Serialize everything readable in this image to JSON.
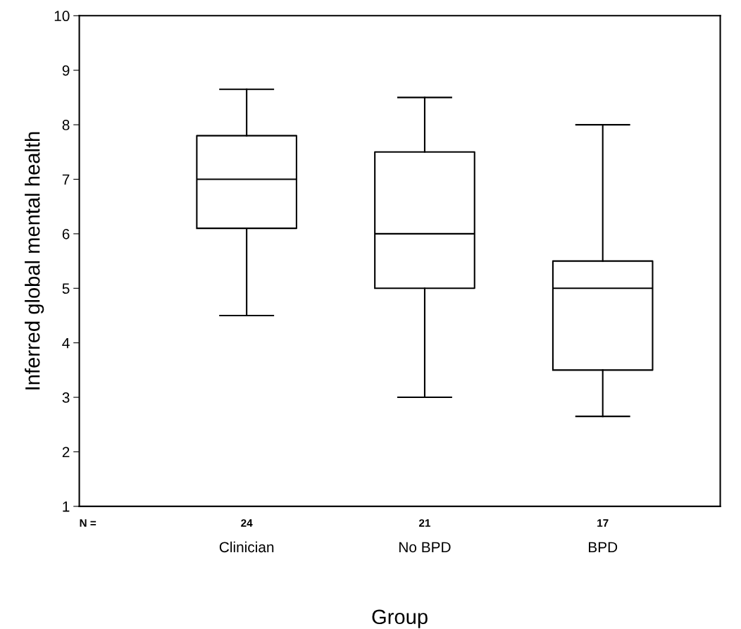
{
  "chart_data": {
    "type": "box",
    "xlabel": "Group",
    "ylabel": "Inferred global mental health",
    "categories": [
      "Clinician",
      "No BPD",
      "BPD"
    ],
    "boxes": [
      {
        "low": 4.5,
        "q1": 6.1,
        "median": 7.0,
        "q3": 7.8,
        "high": 8.65
      },
      {
        "low": 3.0,
        "q1": 5.0,
        "median": 6.0,
        "q3": 7.5,
        "high": 8.5
      },
      {
        "low": 2.65,
        "q1": 3.5,
        "median": 5.0,
        "q3": 5.5,
        "high": 8.0
      }
    ],
    "color": "#000000",
    "ylim": [
      1,
      10
    ],
    "yticks": [
      1,
      2,
      3,
      4,
      5,
      6,
      7,
      8,
      9,
      10
    ],
    "annotations": [
      "N =",
      "24",
      "21",
      "17"
    ],
    "grid": false
  }
}
